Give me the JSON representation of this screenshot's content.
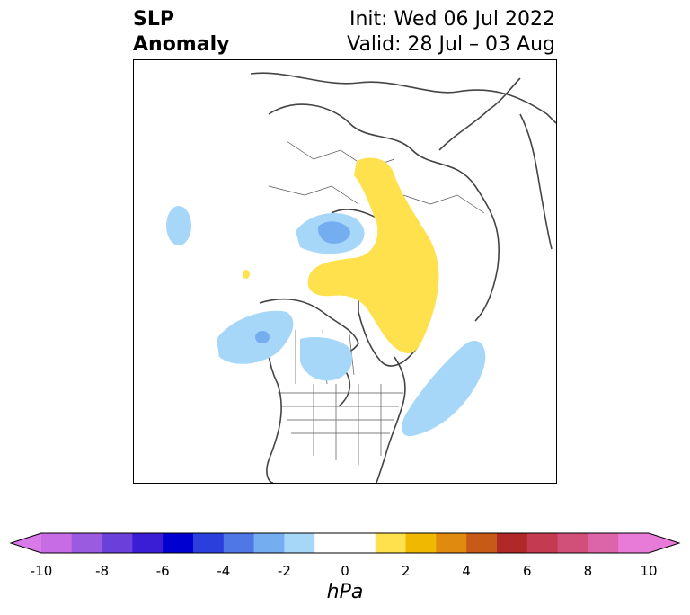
{
  "title": {
    "left_line1": "SLP",
    "left_line2": "Anomaly",
    "right_line1": "Init: Wed 06 Jul 2022",
    "right_line2": "Valid: 28 Jul – 03 Aug"
  },
  "colorbar": {
    "unit": "hPa",
    "ticks": [
      "-10",
      "-8",
      "-6",
      "-4",
      "-2",
      "0",
      "2",
      "4",
      "6",
      "8",
      "10"
    ],
    "under_color": "#d87ae8",
    "over_color": "#e87ad8",
    "colors": [
      "#c86ce6",
      "#9a5be0",
      "#6b3fd9",
      "#3a1ed6",
      "#0000d0",
      "#2a3fdc",
      "#4f78e6",
      "#75aef0",
      "#a7d7f8",
      "#ffffff",
      "#ffffff",
      "#ffe04d",
      "#f0b800",
      "#e08a10",
      "#c85a18",
      "#b02828",
      "#c43a50",
      "#d0507a",
      "#dc64a8",
      "#e87ad8"
    ]
  },
  "map": {
    "projection": "north-polar-stereographic",
    "variable": "Sea level pressure anomaly",
    "positive_color": "#ffe04d",
    "negative_color": "#a7d7f8",
    "strong_negative_color": "#75aef0"
  }
}
